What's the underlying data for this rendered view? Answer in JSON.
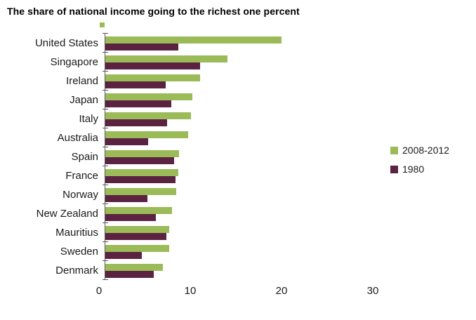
{
  "title": "The share of national income going to the richest one percent",
  "chart_data": {
    "type": "bar",
    "orientation": "horizontal",
    "title": "The share of national income going to the richest one percent",
    "categories": [
      "United States",
      "Singapore",
      "Ireland",
      "Japan",
      "Italy",
      "Australia",
      "Spain",
      "France",
      "Norway",
      "New Zealand",
      "Mauritius",
      "Sweden",
      "Denmark"
    ],
    "series": [
      {
        "name": "2008-2012",
        "color": "#9BBB59",
        "values": [
          19.3,
          13.4,
          10.4,
          9.5,
          9.4,
          9.1,
          8.1,
          8.0,
          7.8,
          7.3,
          7.0,
          7.0,
          6.3
        ]
      },
      {
        "name": "1980",
        "color": "#5C2242",
        "values": [
          8.0,
          10.4,
          6.6,
          7.2,
          6.8,
          4.7,
          7.5,
          7.7,
          4.6,
          5.5,
          6.7,
          4.0,
          5.3
        ]
      }
    ],
    "xlabel": "",
    "ylabel": "",
    "xlim": [
      0,
      30
    ],
    "xticks": [
      0,
      10,
      20,
      30
    ],
    "grid": false,
    "legend_position": "right"
  },
  "colors": {
    "series_2008_2012": "#9BBB59",
    "series_1980": "#5C2242",
    "axis": "#595959"
  }
}
